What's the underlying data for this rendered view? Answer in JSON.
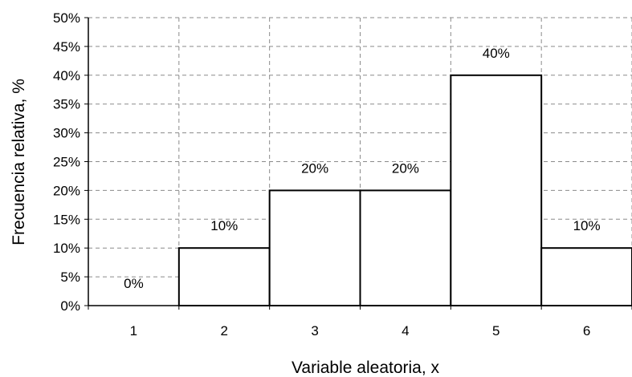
{
  "chart_data": {
    "type": "bar",
    "categories": [
      "1",
      "2",
      "3",
      "4",
      "5",
      "6"
    ],
    "values": [
      0,
      10,
      20,
      20,
      40,
      10
    ],
    "data_labels": [
      "0%",
      "10%",
      "20%",
      "20%",
      "40%",
      "10%"
    ],
    "title": "",
    "xlabel": "Variable aleatoria, x",
    "ylabel": "Frecuencia relativa, %",
    "ylim": [
      0,
      50
    ],
    "ytick_labels": [
      "0%",
      "5%",
      "10%",
      "15%",
      "20%",
      "25%",
      "30%",
      "35%",
      "40%",
      "45%",
      "50%"
    ],
    "grid": "dashed, both axes",
    "bar_fill": "#ffffff",
    "bar_stroke": "#000000"
  }
}
